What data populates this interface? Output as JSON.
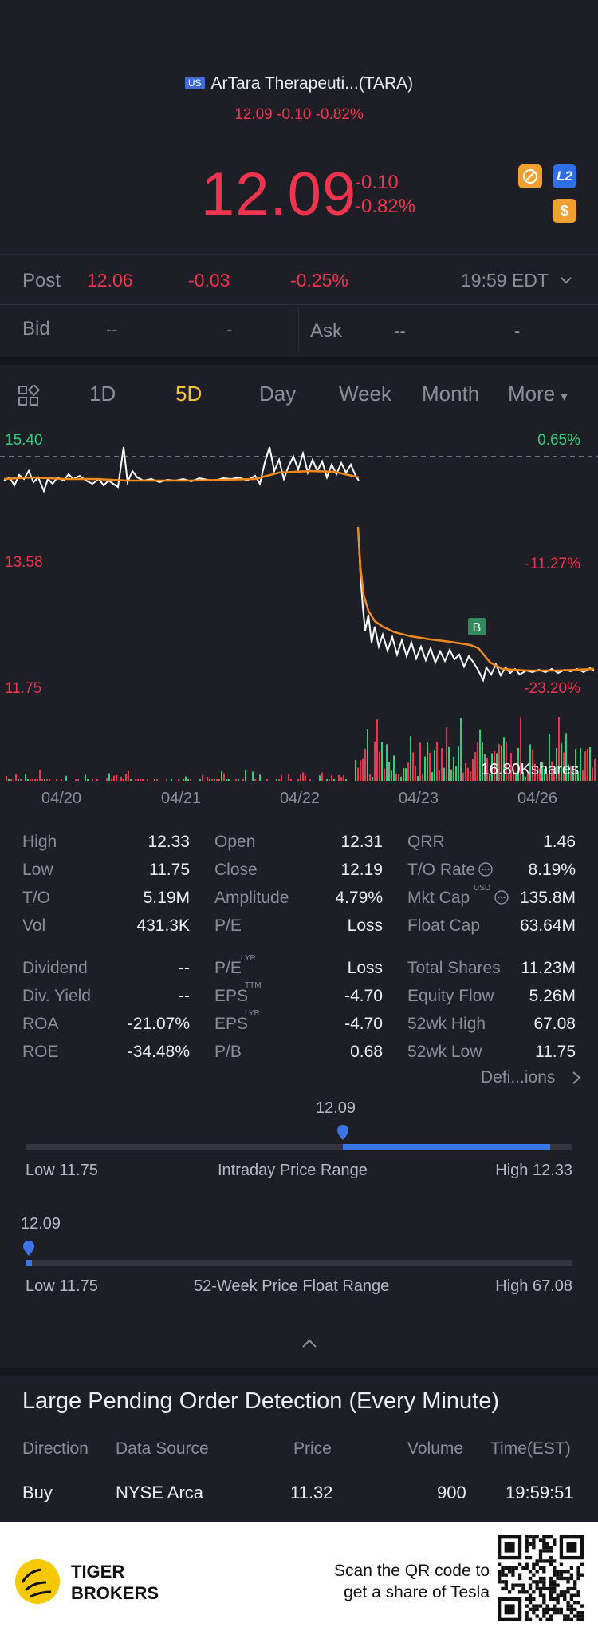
{
  "header": {
    "market_badge": "US",
    "title": "ArTara Therapeuti...(TARA)",
    "subtitle": "12.09 -0.10 -0.82%"
  },
  "quote": {
    "price": "12.09",
    "change": "-0.10",
    "change_pct": "-0.82%",
    "badges": {
      "l2": "L2",
      "dollar": "$"
    }
  },
  "post": {
    "label": "Post",
    "price": "12.06",
    "change": "-0.03",
    "change_pct": "-0.25%",
    "time": "19:59 EDT"
  },
  "bidask": {
    "bid_label": "Bid",
    "bid_price": "--",
    "bid_size": "-",
    "ask_label": "Ask",
    "ask_price": "--",
    "ask_size": "-"
  },
  "tabs": [
    "1D",
    "5D",
    "Day",
    "Week",
    "Month",
    "More"
  ],
  "active_tab": "5D",
  "chart_labels": {
    "left_top": "15.40",
    "left_mid": "13.58",
    "left_bottom": "11.75",
    "right_top": "0.65%",
    "right_mid": "-11.27%",
    "right_bottom": "-23.20%",
    "volume": "16.80Kshares",
    "marker": "B"
  },
  "chart_data": {
    "type": "line",
    "x": [
      "04/20",
      "04/21",
      "04/22",
      "04/23",
      "04/26"
    ],
    "series": [],
    "ylim": [
      11.75,
      15.4
    ]
  },
  "stats": [
    [
      "High",
      "12.33",
      "Open",
      "12.31",
      "QRR",
      "1.46"
    ],
    [
      "Low",
      "11.75",
      "Close",
      "12.19",
      "T/O Rate",
      "8.19%"
    ],
    [
      "T/O",
      "5.19M",
      "Amplitude",
      "4.79%",
      "Mkt Cap",
      "135.8M"
    ],
    [
      "Vol",
      "431.3K",
      "P/E",
      "Loss",
      "Float Cap",
      "63.64M"
    ]
  ],
  "stats2": [
    [
      "Dividend",
      "--",
      "P/E",
      "Loss",
      "Total Shares",
      "11.23M"
    ],
    [
      "Div. Yield",
      "--",
      "EPS",
      "-4.70",
      "Equity Flow",
      "5.26M"
    ],
    [
      "ROA",
      "-21.07%",
      "EPS",
      "-4.70",
      "52wk High",
      "67.08"
    ],
    [
      "ROE",
      "-34.48%",
      "P/B",
      "0.68",
      "52wk Low",
      "11.75"
    ]
  ],
  "superscripts": {
    "lyr": "LYR",
    "ttm": "TTM",
    "usd": "USD"
  },
  "definitions_link": "Defi...ions",
  "intraday_range": {
    "current": "12.09",
    "low": "Low 11.75",
    "label": "Intraday Price Range",
    "high": "High 12.33",
    "position": 0.52
  },
  "week52_range": {
    "current": "12.09",
    "low": "Low 11.75",
    "label": "52-Week Price Float Range",
    "high": "High 67.08",
    "position": 0.006
  },
  "pending_orders": {
    "title": "Large Pending Order Detection (Every Minute)",
    "headers": [
      "Direction",
      "Data Source",
      "Price",
      "Volume",
      "Time(EST)"
    ],
    "row": [
      "Buy",
      "NYSE Arca",
      "11.32",
      "900",
      "19:59:51"
    ]
  },
  "footer": {
    "brand_line1": "TIGER",
    "brand_line2": "BROKERS",
    "promo_line1": "Scan the QR code to",
    "promo_line2": "get a share of Tesla"
  },
  "colors": {
    "background": "#1e1f26",
    "red": "#f0334f",
    "green": "#2fd07b",
    "accent_yellow": "#f5c338",
    "blue": "#3b74e6"
  }
}
